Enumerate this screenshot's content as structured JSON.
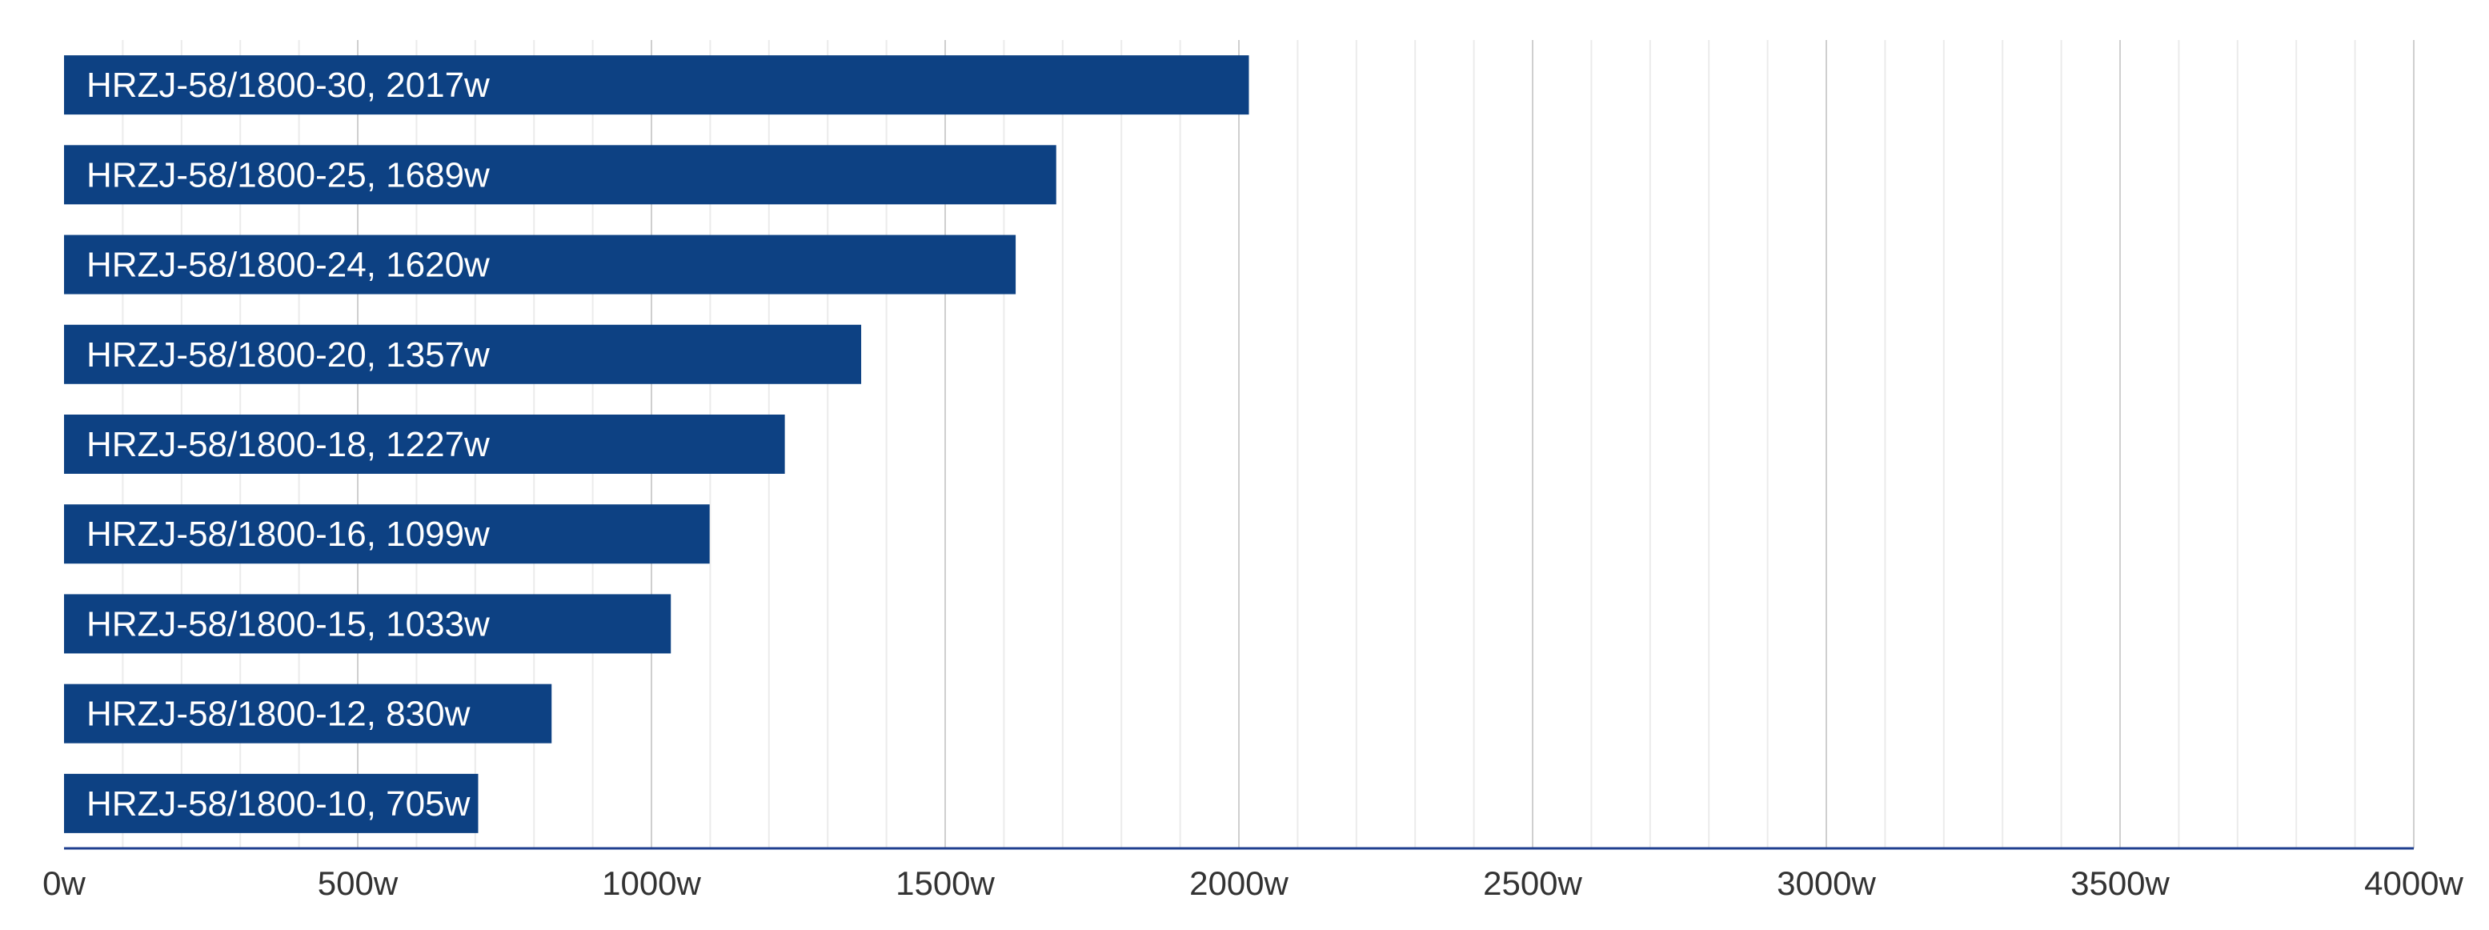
{
  "chart_data": {
    "type": "bar",
    "orientation": "horizontal",
    "categories": [
      "HRZJ-58/1800-30",
      "HRZJ-58/1800-25",
      "HRZJ-58/1800-24",
      "HRZJ-58/1800-20",
      "HRZJ-58/1800-18",
      "HRZJ-58/1800-16",
      "HRZJ-58/1800-15",
      "HRZJ-58/1800-12",
      "HRZJ-58/1800-10"
    ],
    "values": [
      2017,
      1689,
      1620,
      1357,
      1227,
      1099,
      1033,
      830,
      705
    ],
    "bar_labels": [
      "HRZJ-58/1800-30, 2017w",
      "HRZJ-58/1800-25, 1689w",
      "HRZJ-58/1800-24, 1620w",
      "HRZJ-58/1800-20, 1357w",
      "HRZJ-58/1800-18, 1227w",
      "HRZJ-58/1800-16, 1099w",
      "HRZJ-58/1800-15, 1033w",
      "HRZJ-58/1800-12, 830w",
      "HRZJ-58/1800-10, 705w"
    ],
    "unit": "w",
    "xlim": [
      0,
      4000
    ],
    "x_ticks": [
      0,
      500,
      1000,
      1500,
      2000,
      2500,
      3000,
      3500,
      4000
    ],
    "x_tick_labels": [
      "0w",
      "500w",
      "1000w",
      "1500w",
      "2000w",
      "2500w",
      "3000w",
      "3500w",
      "4000w"
    ],
    "minor_grid_step": 100,
    "grid": true,
    "legend": "none",
    "title": "",
    "xlabel": "",
    "ylabel": "",
    "colors": {
      "bar": "#0d4183",
      "axis": "#1f3f8f"
    }
  }
}
